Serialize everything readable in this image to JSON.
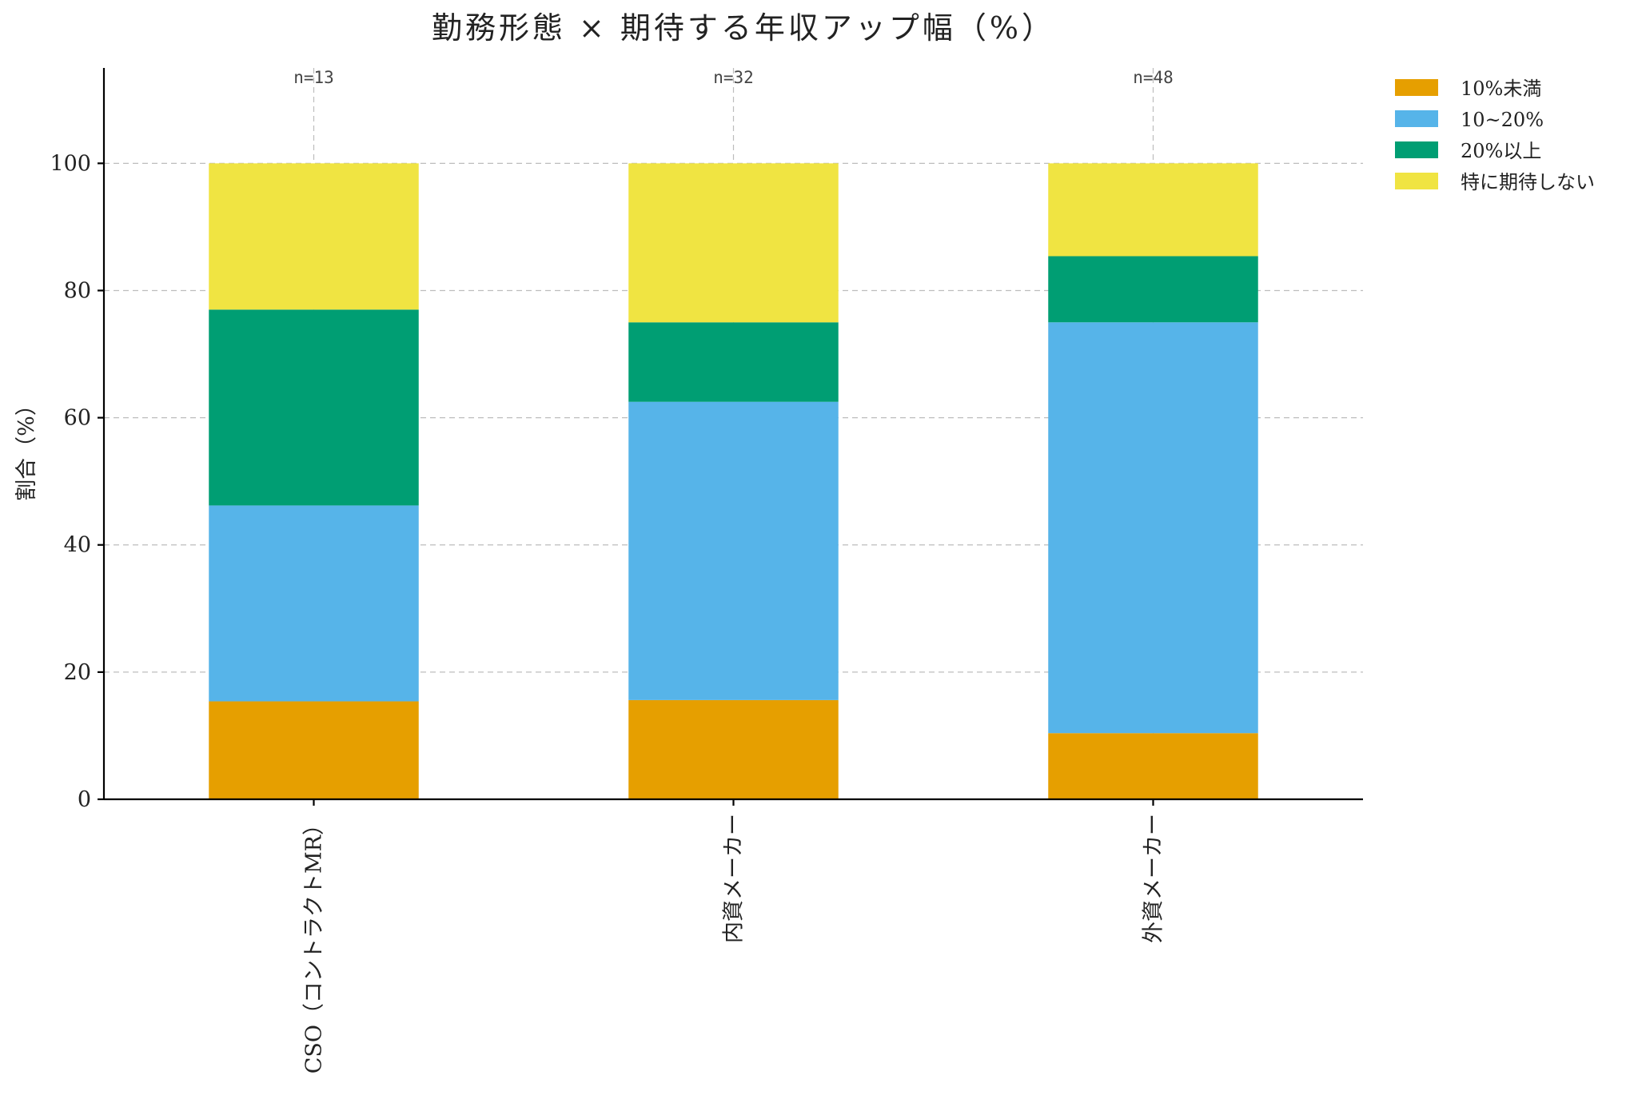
{
  "chart_data": {
    "type": "bar",
    "stacked": true,
    "title": "勤務形態 × 期待する年収アップ幅（%）",
    "xlabel": "",
    "ylabel": "割合（%）",
    "ylim": [
      0,
      115
    ],
    "yticks": [
      0,
      20,
      40,
      60,
      80,
      100
    ],
    "grid": true,
    "legend_position": "outside-top-right",
    "categories": [
      "CSO（コントラクトMR）",
      "内資メーカー",
      "外資メーカー"
    ],
    "annotations": [
      "n=13",
      "n=32",
      "n=48"
    ],
    "series": [
      {
        "name": "10%未満",
        "color": "#E69F00",
        "values": [
          15.4,
          15.6,
          10.4
        ]
      },
      {
        "name": "10~20%",
        "color": "#56B4E9",
        "values": [
          30.8,
          46.9,
          64.6
        ]
      },
      {
        "name": "20%以上",
        "color": "#009E73",
        "values": [
          30.8,
          12.5,
          10.4
        ]
      },
      {
        "name": "特に期待しない",
        "color": "#F0E442",
        "values": [
          23.0,
          25.0,
          14.6
        ]
      }
    ]
  }
}
